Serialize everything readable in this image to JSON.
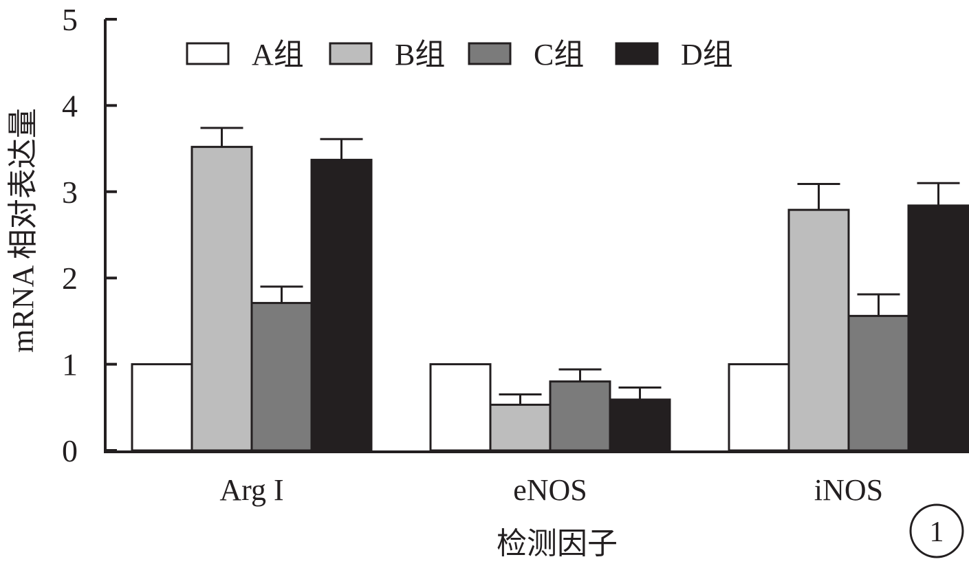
{
  "chart_data": {
    "type": "bar",
    "title": "",
    "xlabel": "检测因子",
    "ylabel": "mRNA 相对表达量",
    "ylim": [
      0,
      5
    ],
    "yticks": [
      0,
      1,
      2,
      3,
      4,
      5
    ],
    "grid": false,
    "legend_position": "top",
    "categories": [
      "Arg I",
      "eNOS",
      "iNOS"
    ],
    "series": [
      {
        "name": "A组",
        "color": "#ffffff",
        "values": [
          1.0,
          1.0,
          1.0
        ],
        "errors": [
          0,
          0,
          0
        ]
      },
      {
        "name": "B组",
        "color": "#bdbdbd",
        "values": [
          3.52,
          0.53,
          2.79
        ],
        "errors": [
          0.22,
          0.12,
          0.3
        ]
      },
      {
        "name": "C组",
        "color": "#7b7b7b",
        "values": [
          1.71,
          0.8,
          1.56
        ],
        "errors": [
          0.19,
          0.14,
          0.25
        ]
      },
      {
        "name": "D组",
        "color": "#231f20",
        "values": [
          3.37,
          0.59,
          2.84
        ],
        "errors": [
          0.24,
          0.14,
          0.26
        ]
      }
    ],
    "annotations": [
      "1"
    ]
  }
}
